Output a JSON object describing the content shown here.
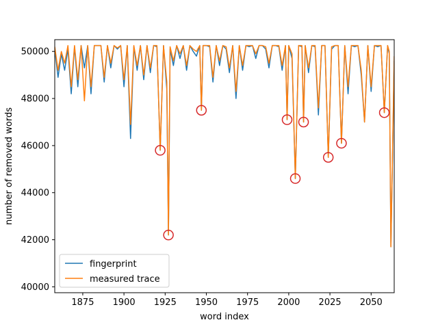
{
  "chart_data": {
    "type": "line",
    "title": "",
    "xlabel": "word index",
    "ylabel": "number of removed words",
    "xlim": [
      1858,
      2064
    ],
    "ylim": [
      39750,
      50500
    ],
    "xticks": [
      1875,
      1900,
      1925,
      1950,
      1975,
      2000,
      2025,
      2050
    ],
    "yticks": [
      40000,
      42000,
      44000,
      46000,
      48000,
      50000
    ],
    "xtick_labels": [
      "1875",
      "1900",
      "1925",
      "1950",
      "1975",
      "2000",
      "2025",
      "2050"
    ],
    "ytick_labels": [
      "40000",
      "42000",
      "44000",
      "46000",
      "48000",
      "50000"
    ],
    "grid": false,
    "legend_position": "lower-left",
    "x": [
      1858,
      1860,
      1862,
      1864,
      1866,
      1868,
      1870,
      1872,
      1874,
      1876,
      1878,
      1880,
      1882,
      1884,
      1886,
      1888,
      1890,
      1892,
      1894,
      1896,
      1898,
      1900,
      1902,
      1904,
      1906,
      1908,
      1910,
      1912,
      1914,
      1916,
      1918,
      1920,
      1922,
      1924,
      1926,
      1927,
      1928,
      1930,
      1932,
      1934,
      1936,
      1938,
      1940,
      1942,
      1944,
      1946,
      1947,
      1948,
      1950,
      1952,
      1954,
      1956,
      1958,
      1960,
      1962,
      1964,
      1966,
      1968,
      1970,
      1972,
      1974,
      1976,
      1978,
      1980,
      1982,
      1984,
      1986,
      1988,
      1990,
      1992,
      1994,
      1996,
      1998,
      1999,
      2000,
      2002,
      2004,
      2006,
      2008,
      2009,
      2010,
      2012,
      2014,
      2016,
      2018,
      2020,
      2022,
      2024,
      2026,
      2028,
      2030,
      2032,
      2034,
      2036,
      2038,
      2040,
      2042,
      2044,
      2046,
      2048,
      2050,
      2052,
      2054,
      2056,
      2058,
      2060,
      2061,
      2062,
      2064
    ],
    "series": [
      {
        "name": "fingerprint",
        "color": "#1f77b4",
        "values": [
          50100,
          48900,
          49900,
          49200,
          50100,
          48200,
          50200,
          48500,
          50250,
          49300,
          50250,
          48200,
          50250,
          50250,
          50250,
          48700,
          50250,
          49300,
          50250,
          50100,
          50250,
          48500,
          50250,
          46300,
          50200,
          49200,
          50250,
          48800,
          50250,
          49100,
          50250,
          50200,
          45800,
          50250,
          48400,
          42200,
          50100,
          49400,
          50250,
          49700,
          50250,
          49200,
          50250,
          50000,
          49800,
          50250,
          47500,
          50250,
          50250,
          50200,
          48700,
          50250,
          49400,
          50250,
          50100,
          49100,
          50250,
          48000,
          50250,
          49200,
          50250,
          50200,
          50250,
          49700,
          50250,
          50250,
          50100,
          49300,
          50250,
          50250,
          50200,
          49200,
          50250,
          47100,
          50250,
          49700,
          44600,
          50250,
          50200,
          47000,
          50250,
          49100,
          50250,
          50200,
          47300,
          50250,
          50250,
          45500,
          50100,
          50250,
          50250,
          46100,
          50250,
          48200,
          50250,
          50200,
          50250,
          49000,
          47000,
          50250,
          48300,
          50250,
          50200,
          50250,
          47400,
          50250,
          49900,
          41700,
          49600
        ]
      },
      {
        "name": "measured trace",
        "color": "#ff7f0e",
        "values": [
          50200,
          49200,
          50000,
          49500,
          50250,
          48500,
          50250,
          48800,
          50250,
          47900,
          50250,
          48500,
          50250,
          50250,
          50250,
          48900,
          50250,
          49500,
          50250,
          50150,
          50250,
          48800,
          50250,
          46900,
          50250,
          49400,
          50250,
          49000,
          50250,
          49300,
          50250,
          50250,
          45800,
          50250,
          48700,
          42200,
          50200,
          49600,
          50250,
          49900,
          50250,
          49400,
          50250,
          50100,
          50000,
          50250,
          47500,
          50250,
          50250,
          50250,
          48900,
          50250,
          49600,
          50250,
          50200,
          49300,
          50250,
          48300,
          50250,
          49400,
          50250,
          50250,
          50250,
          49900,
          50250,
          50250,
          50200,
          49500,
          50250,
          50250,
          50250,
          49400,
          50250,
          47100,
          50250,
          49900,
          44600,
          50250,
          50250,
          47000,
          50250,
          49300,
          50250,
          50250,
          47600,
          50250,
          50250,
          45500,
          50200,
          50250,
          50250,
          46100,
          50250,
          48500,
          50250,
          50250,
          50250,
          49200,
          47000,
          50250,
          48500,
          50250,
          50250,
          50250,
          47400,
          50250,
          50000,
          41700,
          49800
        ]
      }
    ],
    "markers": {
      "color": "#d62728",
      "points": [
        {
          "x": 1922,
          "y": 45800
        },
        {
          "x": 1927,
          "y": 42200
        },
        {
          "x": 1947,
          "y": 47500
        },
        {
          "x": 1999,
          "y": 47100
        },
        {
          "x": 2004,
          "y": 44600
        },
        {
          "x": 2009,
          "y": 47000
        },
        {
          "x": 2024,
          "y": 45500
        },
        {
          "x": 2032,
          "y": 46100
        },
        {
          "x": 2058,
          "y": 47400
        }
      ]
    }
  }
}
